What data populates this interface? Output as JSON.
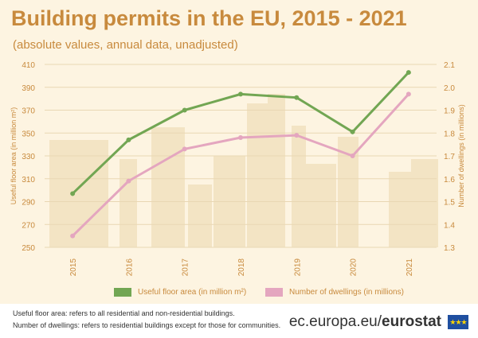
{
  "header": {
    "title": "Building permits in the EU, 2015 - 2021",
    "subtitle": "(absolute values, annual data, unadjusted)"
  },
  "chart_data": {
    "type": "line",
    "categories": [
      "2015",
      "2016",
      "2017",
      "2018",
      "2019",
      "2020",
      "2021"
    ],
    "series": [
      {
        "name": "Useful floor area (in million m²)",
        "axis": "left",
        "color": "#72a653",
        "values": [
          297,
          344,
          370,
          384,
          381,
          351,
          403
        ]
      },
      {
        "name": "Number of dwellings (in millions)",
        "axis": "right",
        "color": "#e4a6bf",
        "values": [
          1.35,
          1.59,
          1.73,
          1.78,
          1.79,
          1.7,
          1.97
        ]
      }
    ],
    "ylabel_left": "Useful floor area (in million m²)",
    "ylabel_right": "Number of dwellings (in millions)",
    "ylim_left": [
      250,
      410
    ],
    "ylim_right": [
      1.3,
      2.1
    ],
    "yticks_left": [
      "250",
      "270",
      "290",
      "310",
      "330",
      "350",
      "370",
      "390",
      "410"
    ],
    "yticks_right": [
      "1.3",
      "1.4",
      "1.5",
      "1.6",
      "1.7",
      "1.8",
      "1.9",
      "2.0",
      "2.1"
    ],
    "grid": true,
    "legend_position": "bottom"
  },
  "footer": {
    "note1": "Useful floor area: refers to all residential and non-residential buildings.",
    "note2": "Number of dwellings: refers to residential buildings except for those for communities.",
    "brand_plain": "ec.europa.eu/",
    "brand_bold": "eurostat"
  },
  "colors": {
    "title": "#c88a3d",
    "background": "#fdf4e1",
    "grid": "#e9d7b3"
  }
}
